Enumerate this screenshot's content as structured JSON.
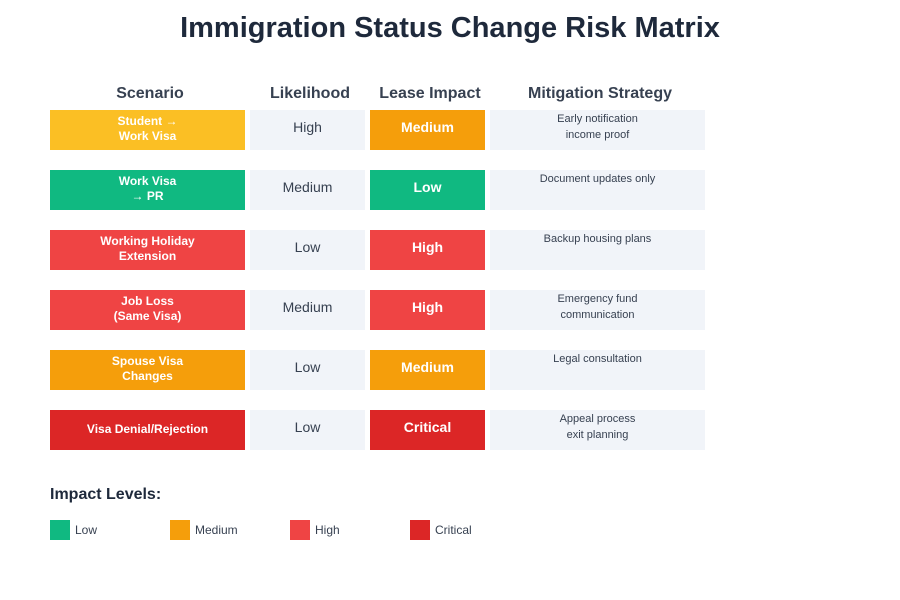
{
  "title": "Immigration Status Change Risk Matrix",
  "headers": {
    "scenario": "Scenario",
    "likelihood": "Likelihood",
    "impact": "Lease Impact",
    "mitigation": "Mitigation Strategy"
  },
  "colors": {
    "Low": "#10b981",
    "Medium": "#f59e0b",
    "High": "#ef4444",
    "Critical": "#dc2626",
    "scenario_student": "#fbbf24"
  },
  "rows": [
    {
      "scenario": "Student →\nWork Visa",
      "scenario_color": "#fbbf24",
      "likelihood": "High",
      "impact": "Medium",
      "mitigation": "Early notification\nincome proof"
    },
    {
      "scenario": "Work Visa\n→ PR",
      "scenario_color": "#10b981",
      "likelihood": "Medium",
      "impact": "Low",
      "mitigation": "Document updates only"
    },
    {
      "scenario": "Working Holiday\nExtension",
      "scenario_color": "#ef4444",
      "likelihood": "Low",
      "impact": "High",
      "mitigation": "Backup housing plans"
    },
    {
      "scenario": "Job Loss\n(Same Visa)",
      "scenario_color": "#ef4444",
      "likelihood": "Medium",
      "impact": "High",
      "mitigation": "Emergency fund\ncommunication"
    },
    {
      "scenario": "Spouse Visa\nChanges",
      "scenario_color": "#f59e0b",
      "likelihood": "Low",
      "impact": "Medium",
      "mitigation": "Legal consultation"
    },
    {
      "scenario": "Visa Denial/Rejection",
      "scenario_color": "#dc2626",
      "likelihood": "Low",
      "impact": "Critical",
      "mitigation": "Appeal process\nexit planning"
    }
  ],
  "legend": {
    "title": "Impact Levels:",
    "items": [
      {
        "label": "Low",
        "color": "#10b981"
      },
      {
        "label": "Medium",
        "color": "#f59e0b"
      },
      {
        "label": "High",
        "color": "#ef4444"
      },
      {
        "label": "Critical",
        "color": "#dc2626"
      }
    ]
  }
}
